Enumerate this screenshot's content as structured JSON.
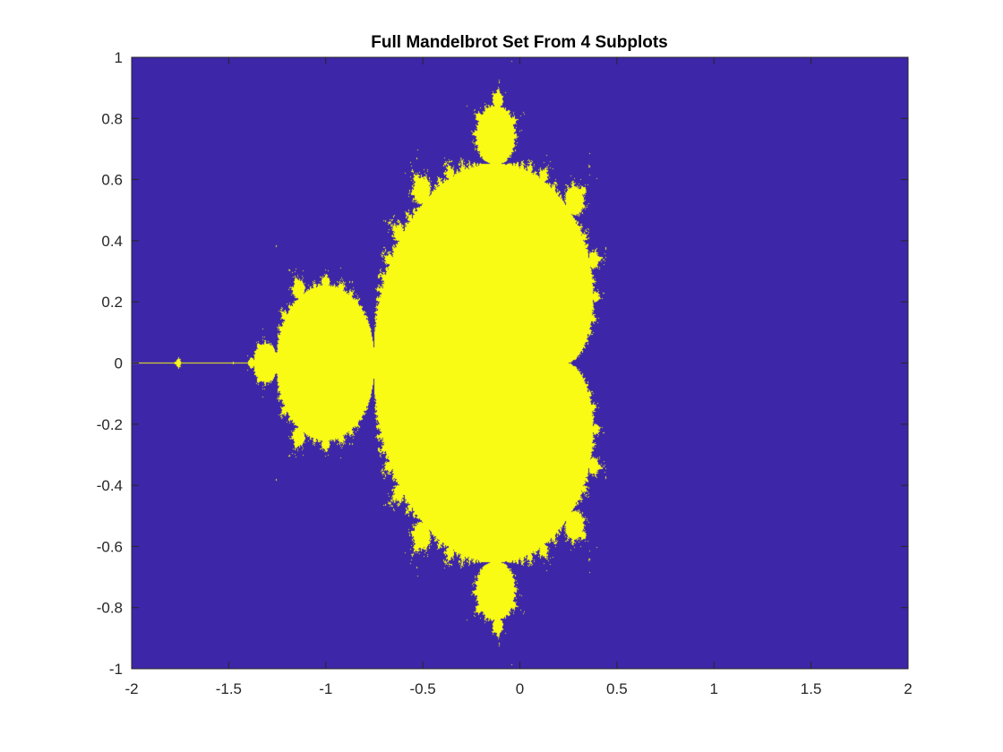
{
  "chart_data": {
    "type": "heatmap",
    "title": "Full Mandelbrot Set From 4 Subplots",
    "xlabel": "",
    "ylabel": "",
    "xlim": [
      -2,
      2
    ],
    "ylim": [
      -1,
      1
    ],
    "x_ticks": [
      -2,
      -1.5,
      -1,
      -0.5,
      0,
      0.5,
      1,
      1.5,
      2
    ],
    "x_tick_labels": [
      "-2",
      "-1.5",
      "-1",
      "-0.5",
      "0",
      "0.5",
      "1",
      "1.5",
      "2"
    ],
    "y_ticks": [
      -1,
      -0.8,
      -0.6,
      -0.4,
      -0.2,
      0,
      0.2,
      0.4,
      0.6,
      0.8,
      1
    ],
    "y_tick_labels": [
      "-1",
      "-0.8",
      "-0.6",
      "-0.4",
      "-0.2",
      "0",
      "0.2",
      "0.4",
      "0.6",
      "0.8",
      "1"
    ],
    "grid": false,
    "colors": {
      "outside_set": "#3d26a8",
      "inside_set": "#f9fb15",
      "axis": "#262626"
    },
    "max_iterations": 60,
    "escape_radius": 2
  }
}
